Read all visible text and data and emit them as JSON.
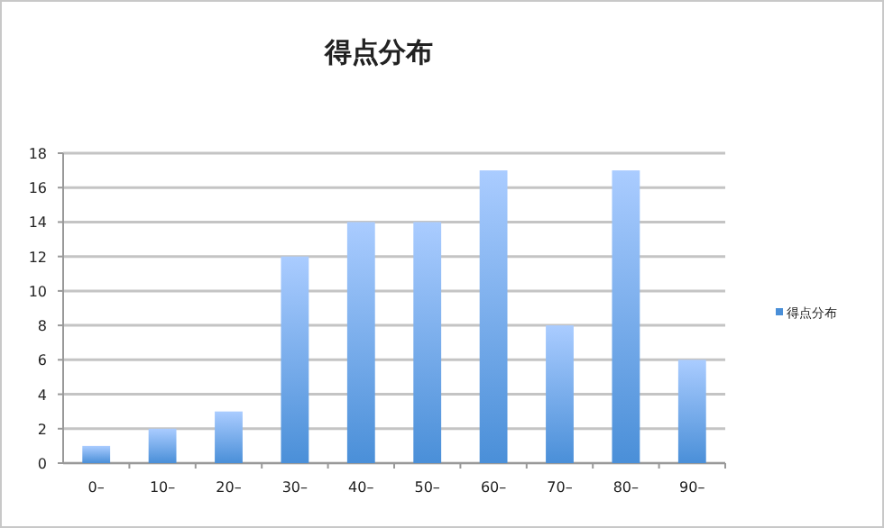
{
  "chart_data": {
    "type": "bar",
    "title": "得点分布",
    "categories": [
      "0–",
      "10–",
      "20–",
      "30–",
      "40–",
      "50–",
      "60–",
      "70–",
      "80–",
      "90–"
    ],
    "series": [
      {
        "name": "得点分布",
        "color": "#4a8fd8",
        "values": [
          1,
          2,
          3,
          12,
          14,
          14,
          17,
          8,
          17,
          6
        ]
      }
    ],
    "ylim": [
      0,
      18
    ],
    "yticks": [
      0,
      2,
      4,
      6,
      8,
      10,
      12,
      14,
      16,
      18
    ],
    "grid": "y",
    "legend": "right"
  }
}
